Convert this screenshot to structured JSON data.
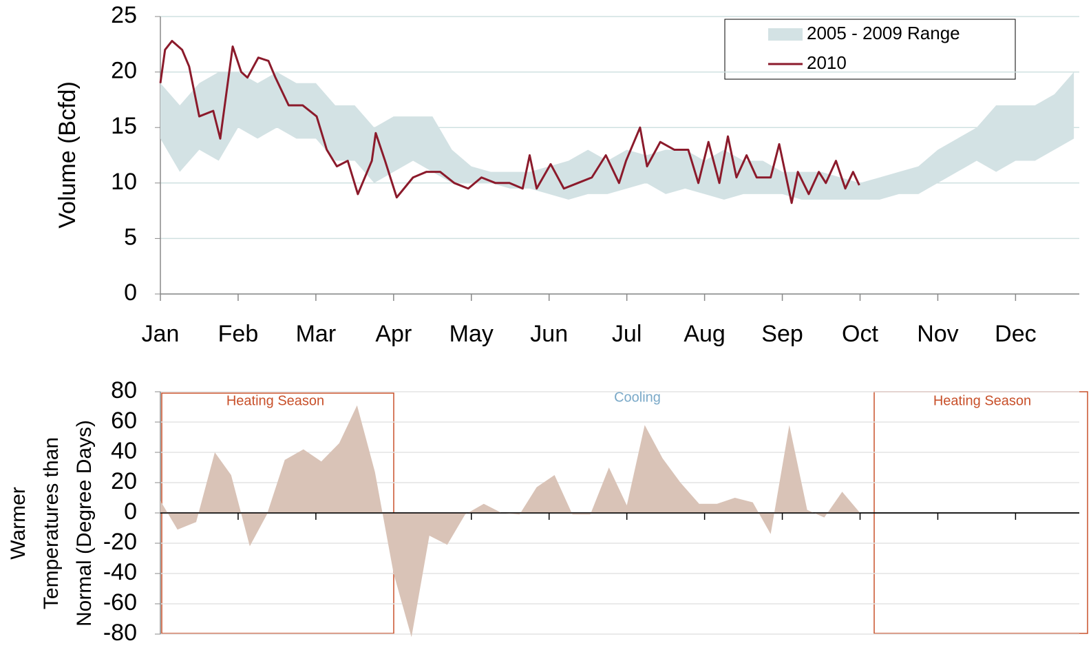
{
  "chart_data": [
    {
      "type": "line",
      "ylabel": "Volume (Bcfd)",
      "xlim": [
        0,
        11.82
      ],
      "xticks": [
        {
          "value": 0,
          "label": "Jan"
        },
        {
          "value": 1,
          "label": "Feb"
        },
        {
          "value": 2,
          "label": "Mar"
        },
        {
          "value": 3,
          "label": "Apr"
        },
        {
          "value": 4,
          "label": "May"
        },
        {
          "value": 5,
          "label": "Jun"
        },
        {
          "value": 6,
          "label": "Jul"
        },
        {
          "value": 7,
          "label": "Aug"
        },
        {
          "value": 8,
          "label": "Sep"
        },
        {
          "value": 9,
          "label": "Oct"
        },
        {
          "value": 10,
          "label": "Nov"
        },
        {
          "value": 11,
          "label": "Dec"
        }
      ],
      "ylim": [
        0,
        25
      ],
      "yticks": [
        0,
        5,
        10,
        15,
        20,
        25
      ],
      "grid": true,
      "legend": "upper right",
      "series": [
        {
          "name": "2005 - 2009 Range",
          "color": "#d3e2e4",
          "x": [
            0,
            0.25,
            0.5,
            0.75,
            1,
            1.25,
            1.5,
            1.75,
            2,
            2.25,
            2.5,
            2.75,
            3,
            3.25,
            3.5,
            3.75,
            4,
            4.25,
            4.5,
            4.75,
            5,
            5.25,
            5.5,
            5.75,
            6,
            6.25,
            6.5,
            6.75,
            7,
            7.25,
            7.5,
            7.75,
            8,
            8.25,
            8.5,
            8.75,
            9,
            9.25,
            9.5,
            9.75,
            10,
            10.25,
            10.5,
            10.75,
            11,
            11.25,
            11.5,
            11.75
          ],
          "low": [
            14,
            11,
            13,
            12,
            15,
            14,
            15,
            14,
            14,
            12,
            12,
            10,
            11,
            12,
            11,
            10,
            10,
            10,
            9.5,
            9.5,
            9,
            8.5,
            9,
            9,
            9.5,
            10,
            9,
            9.5,
            9,
            8.5,
            9,
            9,
            9,
            8.5,
            8.5,
            8.5,
            8.5,
            8.5,
            9,
            9,
            10,
            11,
            12,
            11,
            12,
            12,
            13,
            14
          ],
          "high": [
            19,
            17,
            19,
            20,
            20,
            19,
            20,
            19,
            19,
            17,
            17,
            15,
            16,
            16,
            16,
            13,
            11.5,
            11,
            11,
            11,
            11.5,
            12,
            13,
            12,
            13,
            12.5,
            13,
            13,
            12,
            13,
            12,
            12,
            11,
            11,
            11,
            10.5,
            10,
            10.5,
            11,
            11.5,
            13,
            14,
            15,
            17,
            17,
            17,
            18,
            20
          ]
        },
        {
          "name": "2010",
          "color": "#8b1a2b",
          "x": [
            0,
            0.06,
            0.15,
            0.28,
            0.37,
            0.5,
            0.68,
            0.77,
            0.93,
            1.04,
            1.12,
            1.26,
            1.39,
            1.48,
            1.65,
            1.83,
            2.01,
            2.14,
            2.27,
            2.41,
            2.54,
            2.72,
            2.77,
            2.89,
            3.04,
            3.25,
            3.42,
            3.6,
            3.78,
            3.96,
            4.13,
            4.31,
            4.49,
            4.66,
            4.75,
            4.84,
            5.02,
            5.19,
            5.37,
            5.55,
            5.73,
            5.9,
            5.99,
            6.17,
            6.26,
            6.43,
            6.61,
            6.79,
            6.92,
            7.05,
            7.19,
            7.3,
            7.41,
            7.54,
            7.67,
            7.85,
            7.96,
            8.12,
            8.2,
            8.34,
            8.47,
            8.56,
            8.69,
            8.81,
            8.91,
            8.99
          ],
          "values": [
            19,
            22,
            22.8,
            22,
            20.5,
            16,
            16.5,
            14,
            22.3,
            20,
            19.5,
            21.3,
            21,
            19.5,
            17,
            17,
            16,
            13,
            11.5,
            12,
            9,
            12,
            14.5,
            12,
            8.7,
            10.5,
            11,
            11,
            10,
            9.5,
            10.5,
            10,
            10,
            9.5,
            12.5,
            9.5,
            11.7,
            9.5,
            10,
            10.5,
            12.5,
            10,
            12,
            15,
            11.5,
            13.7,
            13,
            13,
            10,
            13.7,
            10,
            14.2,
            10.5,
            12.5,
            10.5,
            10.5,
            13.5,
            8.2,
            11,
            9,
            11,
            10,
            12,
            9.5,
            11,
            9.8
          ]
        }
      ]
    },
    {
      "type": "area",
      "ylabel": [
        "Warmer",
        "Temperatures than",
        "Normal (Degree Days)"
      ],
      "xlim": [
        0,
        11.82
      ],
      "xticks": [
        1,
        2,
        3,
        4,
        5,
        6,
        7,
        8,
        9,
        10,
        11
      ],
      "ylim": [
        -80,
        80
      ],
      "yticks": [
        -80,
        -60,
        -40,
        -20,
        0,
        20,
        40,
        60,
        80
      ],
      "grid": true,
      "color": "#d9c3b7",
      "annotations": [
        "Heating Season",
        "Cooling",
        "Heating Season"
      ],
      "x": [
        0,
        0.22,
        0.46,
        0.7,
        0.91,
        1.15,
        1.37,
        1.6,
        1.84,
        2.07,
        2.3,
        2.53,
        2.76,
        3,
        3.23,
        3.46,
        3.69,
        3.92,
        4.16,
        4.39,
        4.62,
        4.84,
        5.07,
        5.3,
        5.53,
        5.77,
        6,
        6.23,
        6.46,
        6.69,
        6.93,
        7.16,
        7.39,
        7.62,
        7.85,
        8.09,
        8.32,
        8.54,
        8.77,
        9
      ],
      "values": [
        8,
        -11,
        -6,
        40,
        25,
        -22,
        -1,
        35,
        42,
        34,
        46,
        71,
        27,
        -40,
        -82,
        -15,
        -21,
        -1,
        6,
        0,
        -1,
        17,
        25,
        -1,
        -1,
        30,
        5,
        58,
        36,
        20,
        6,
        6,
        10,
        7,
        -14,
        58,
        2,
        -3,
        14,
        0
      ]
    }
  ]
}
